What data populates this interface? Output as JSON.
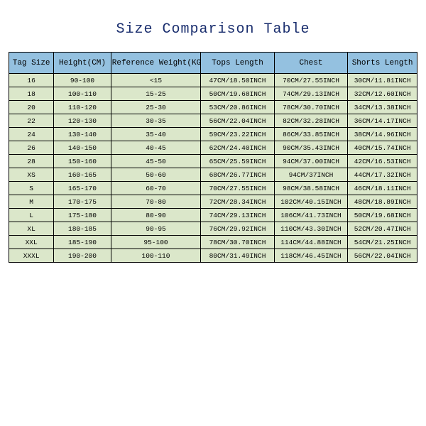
{
  "title": "Size Comparison Table",
  "styling": {
    "header_bg": "#94c1e0",
    "row_bg": "#dbe7ca",
    "border_color": "#000000",
    "title_color": "#1a2e6e",
    "font_family": "Courier New",
    "title_fontsize": 20,
    "header_fontsize": 11,
    "cell_fontsize": 9.5,
    "background": "#ffffff",
    "column_widths_pct": [
      11,
      14,
      22,
      18,
      18,
      17
    ]
  },
  "columns": [
    "Tag Size",
    "Height(CM)",
    "Reference Weight(KG)",
    "Tops Length",
    "Chest",
    "Shorts Length"
  ],
  "rows": [
    [
      "16",
      "90-100",
      "<15",
      "47CM/18.50INCH",
      "70CM/27.55INCH",
      "30CM/11.81INCH"
    ],
    [
      "18",
      "100-110",
      "15-25",
      "50CM/19.68INCH",
      "74CM/29.13INCH",
      "32CM/12.60INCH"
    ],
    [
      "20",
      "110-120",
      "25-30",
      "53CM/20.86INCH",
      "78CM/30.70INCH",
      "34CM/13.38INCH"
    ],
    [
      "22",
      "120-130",
      "30-35",
      "56CM/22.04INCH",
      "82CM/32.28INCH",
      "36CM/14.17INCH"
    ],
    [
      "24",
      "130-140",
      "35-40",
      "59CM/23.22INCH",
      "86CM/33.85INCH",
      "38CM/14.96INCH"
    ],
    [
      "26",
      "140-150",
      "40-45",
      "62CM/24.40INCH",
      "90CM/35.43INCH",
      "40CM/15.74INCH"
    ],
    [
      "28",
      "150-160",
      "45-50",
      "65CM/25.59INCH",
      "94CM/37.00INCH",
      "42CM/16.53INCH"
    ],
    [
      "XS",
      "160-165",
      "50-60",
      "68CM/26.77INCH",
      "94CM/37INCH",
      "44CM/17.32INCH"
    ],
    [
      "S",
      "165-170",
      "60-70",
      "70CM/27.55INCH",
      "98CM/38.58INCH",
      "46CM/18.11INCH"
    ],
    [
      "M",
      "170-175",
      "70-80",
      "72CM/28.34INCH",
      "102CM/40.15INCH",
      "48CM/18.89INCH"
    ],
    [
      "L",
      "175-180",
      "80-90",
      "74CM/29.13INCH",
      "106CM/41.73INCH",
      "50CM/19.68INCH"
    ],
    [
      "XL",
      "180-185",
      "90-95",
      "76CM/29.92INCH",
      "110CM/43.30INCH",
      "52CM/20.47INCH"
    ],
    [
      "XXL",
      "185-190",
      "95-100",
      "78CM/30.70INCH",
      "114CM/44.88INCH",
      "54CM/21.25INCH"
    ],
    [
      "XXXL",
      "190-200",
      "100-110",
      "80CM/31.49INCH",
      "118CM/46.45INCH",
      "56CM/22.04INCH"
    ]
  ]
}
